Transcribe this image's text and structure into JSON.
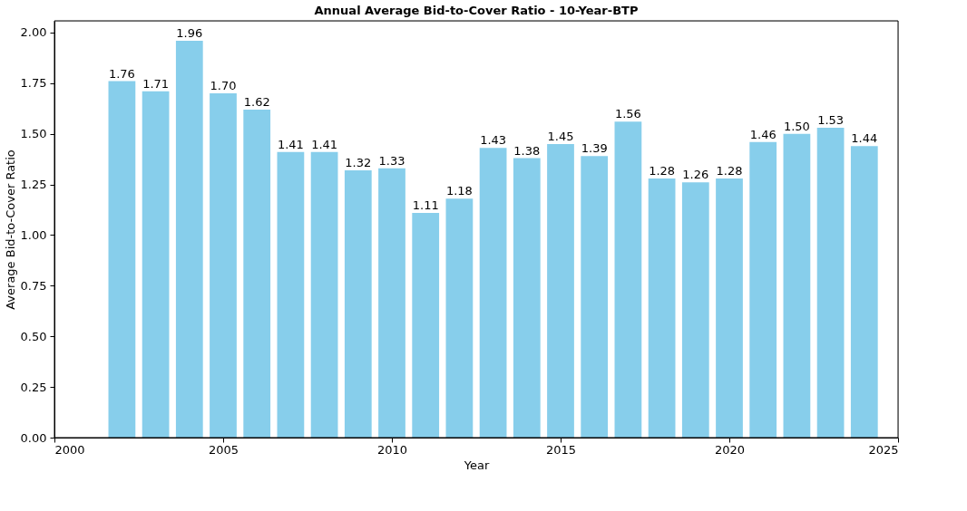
{
  "chart_data": {
    "type": "bar",
    "title": "Annual Average Bid-to-Cover Ratio - 10-Year-BTP",
    "xlabel": "Year",
    "ylabel": "Average Bid-to-Cover Ratio",
    "x": [
      2002,
      2003,
      2004,
      2005,
      2006,
      2007,
      2008,
      2009,
      2010,
      2011,
      2012,
      2013,
      2014,
      2015,
      2016,
      2017,
      2018,
      2019,
      2020,
      2021,
      2022,
      2023,
      2024
    ],
    "values": [
      1.76,
      1.71,
      1.96,
      1.7,
      1.62,
      1.41,
      1.41,
      1.32,
      1.33,
      1.11,
      1.18,
      1.43,
      1.38,
      1.45,
      1.39,
      1.56,
      1.28,
      1.26,
      1.28,
      1.46,
      1.5,
      1.53,
      1.44
    ],
    "value_labels": [
      "1.76",
      "1.71",
      "1.96",
      "1.70",
      "1.62",
      "1.41",
      "1.41",
      "1.32",
      "1.33",
      "1.11",
      "1.18",
      "1.43",
      "1.38",
      "1.45",
      "1.39",
      "1.56",
      "1.28",
      "1.26",
      "1.28",
      "1.46",
      "1.50",
      "1.53",
      "1.44"
    ],
    "color": "#87ceeb",
    "xlim": [
      2000,
      2025
    ],
    "xticks": [
      2000,
      2005,
      2010,
      2015,
      2020,
      2025
    ],
    "ylim": [
      0,
      2.058
    ],
    "yticks": [
      {
        "value": 0,
        "label": "0.00"
      },
      {
        "value": 0.25,
        "label": "0.25"
      },
      {
        "value": 0.5,
        "label": "0.50"
      },
      {
        "value": 0.75,
        "label": "0.75"
      },
      {
        "value": 1,
        "label": "1.00"
      },
      {
        "value": 1.25,
        "label": "1.25"
      },
      {
        "value": 1.5,
        "label": "1.50"
      },
      {
        "value": 1.75,
        "label": "1.75"
      },
      {
        "value": 2,
        "label": "2.00"
      }
    ],
    "grid": false
  }
}
